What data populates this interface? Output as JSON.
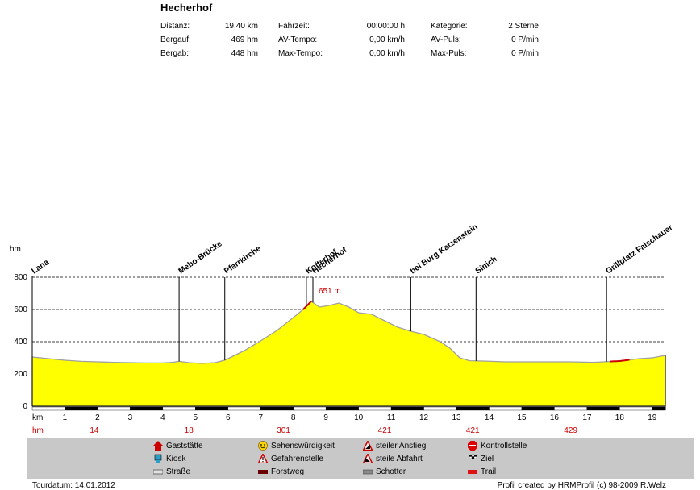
{
  "header": {
    "title": "Hecherhof",
    "stats": [
      {
        "label": "Distanz:",
        "value": "19,40 km"
      },
      {
        "label": "Bergauf:",
        "value": "469 hm"
      },
      {
        "label": "Bergab:",
        "value": "448 hm"
      },
      {
        "label": "Fahrzeit:",
        "value": "00:00:00 h"
      },
      {
        "label": "AV-Tempo:",
        "value": "0,00 km/h"
      },
      {
        "label": "Max-Tempo:",
        "value": "0,00 km/h"
      },
      {
        "label": "Kategorie:",
        "value": "2 Sterne"
      },
      {
        "label": "AV-Puls:",
        "value": "0 P/min"
      },
      {
        "label": "Max-Puls:",
        "value": "0 P/min"
      }
    ]
  },
  "chart_data": {
    "type": "area",
    "ylabel": "hm",
    "xlabel": "km",
    "xlim": [
      0,
      19.4
    ],
    "ylim": [
      0,
      800
    ],
    "yticks": [
      0,
      200,
      400,
      600,
      800
    ],
    "xticks": [
      1,
      2,
      3,
      4,
      5,
      6,
      7,
      8,
      9,
      10,
      11,
      12,
      13,
      14,
      15,
      16,
      17,
      18,
      19
    ],
    "fill_color": "#ffff00",
    "line_color": "#a0a0a0",
    "profile": [
      [
        0,
        305
      ],
      [
        0.5,
        295
      ],
      [
        1,
        285
      ],
      [
        1.5,
        278
      ],
      [
        2,
        275
      ],
      [
        2.5,
        272
      ],
      [
        3,
        270
      ],
      [
        3.5,
        268
      ],
      [
        4,
        268
      ],
      [
        4.3,
        272
      ],
      [
        4.5,
        278
      ],
      [
        4.8,
        270
      ],
      [
        5.2,
        265
      ],
      [
        5.6,
        270
      ],
      [
        5.9,
        285
      ],
      [
        6.2,
        315
      ],
      [
        6.5,
        345
      ],
      [
        7,
        405
      ],
      [
        7.5,
        470
      ],
      [
        8,
        550
      ],
      [
        8.3,
        600
      ],
      [
        8.55,
        651
      ],
      [
        8.8,
        615
      ],
      [
        9.1,
        625
      ],
      [
        9.4,
        640
      ],
      [
        9.7,
        615
      ],
      [
        10,
        580
      ],
      [
        10.4,
        570
      ],
      [
        10.8,
        530
      ],
      [
        11.2,
        490
      ],
      [
        11.6,
        465
      ],
      [
        12,
        445
      ],
      [
        12.5,
        400
      ],
      [
        12.8,
        360
      ],
      [
        13.1,
        300
      ],
      [
        13.4,
        282
      ],
      [
        13.8,
        280
      ],
      [
        14.5,
        275
      ],
      [
        15.5,
        275
      ],
      [
        16.5,
        275
      ],
      [
        17.2,
        272
      ],
      [
        18,
        280
      ],
      [
        18.6,
        295
      ],
      [
        19,
        300
      ],
      [
        19.4,
        315
      ]
    ],
    "peak_label": {
      "km": 8.55,
      "text": "651 m"
    },
    "waypoints": [
      {
        "name": "Lana",
        "km": 0
      },
      {
        "name": "Mebo-Brücke",
        "km": 4.5
      },
      {
        "name": "Pfarrkirche",
        "km": 5.9
      },
      {
        "name": "Kofterhof",
        "km": 8.4
      },
      {
        "name": "Hecherhof",
        "km": 8.6
      },
      {
        "name": "bei Burg Katzenstein",
        "km": 11.6
      },
      {
        "name": "Sinich",
        "km": 13.6
      },
      {
        "name": "Grillplatz Falschauer",
        "km": 17.6
      }
    ],
    "hm_markers": [
      {
        "km": 1.9,
        "label": "14"
      },
      {
        "km": 4.8,
        "label": "18"
      },
      {
        "km": 7.7,
        "label": "301"
      },
      {
        "km": 10.8,
        "label": "421"
      },
      {
        "km": 13.5,
        "label": "421"
      },
      {
        "km": 16.5,
        "label": "429"
      }
    ],
    "hm_label": "hm",
    "trail_segments": [
      [
        8.3,
        8.55
      ],
      [
        17.7,
        18.3
      ]
    ]
  },
  "legend": {
    "items": [
      {
        "label": "Gaststätte",
        "icon": "house-icon"
      },
      {
        "label": "Kiosk",
        "icon": "kiosk-icon"
      },
      {
        "label": "Straße",
        "icon": "road-icon"
      },
      {
        "label": "Sehenswürdigkeit",
        "icon": "smiley-icon"
      },
      {
        "label": "Gefahrenstelle",
        "icon": "warning-icon"
      },
      {
        "label": "Forstweg",
        "icon": "forest-road-icon"
      },
      {
        "label": "steiler Anstieg",
        "icon": "steep-climb-icon"
      },
      {
        "label": "steile Abfahrt",
        "icon": "steep-descent-icon"
      },
      {
        "label": "Schotter",
        "icon": "gravel-icon"
      },
      {
        "label": "Kontrollstelle",
        "icon": "stop-icon"
      },
      {
        "label": "Ziel",
        "icon": "finish-flag-icon"
      },
      {
        "label": "Trail",
        "icon": "trail-icon"
      }
    ]
  },
  "footer": {
    "date": "Tourdatum: 14.01.2012",
    "credit": "Profil created by HRMProfil (c) 98-2009 R.Welz"
  }
}
